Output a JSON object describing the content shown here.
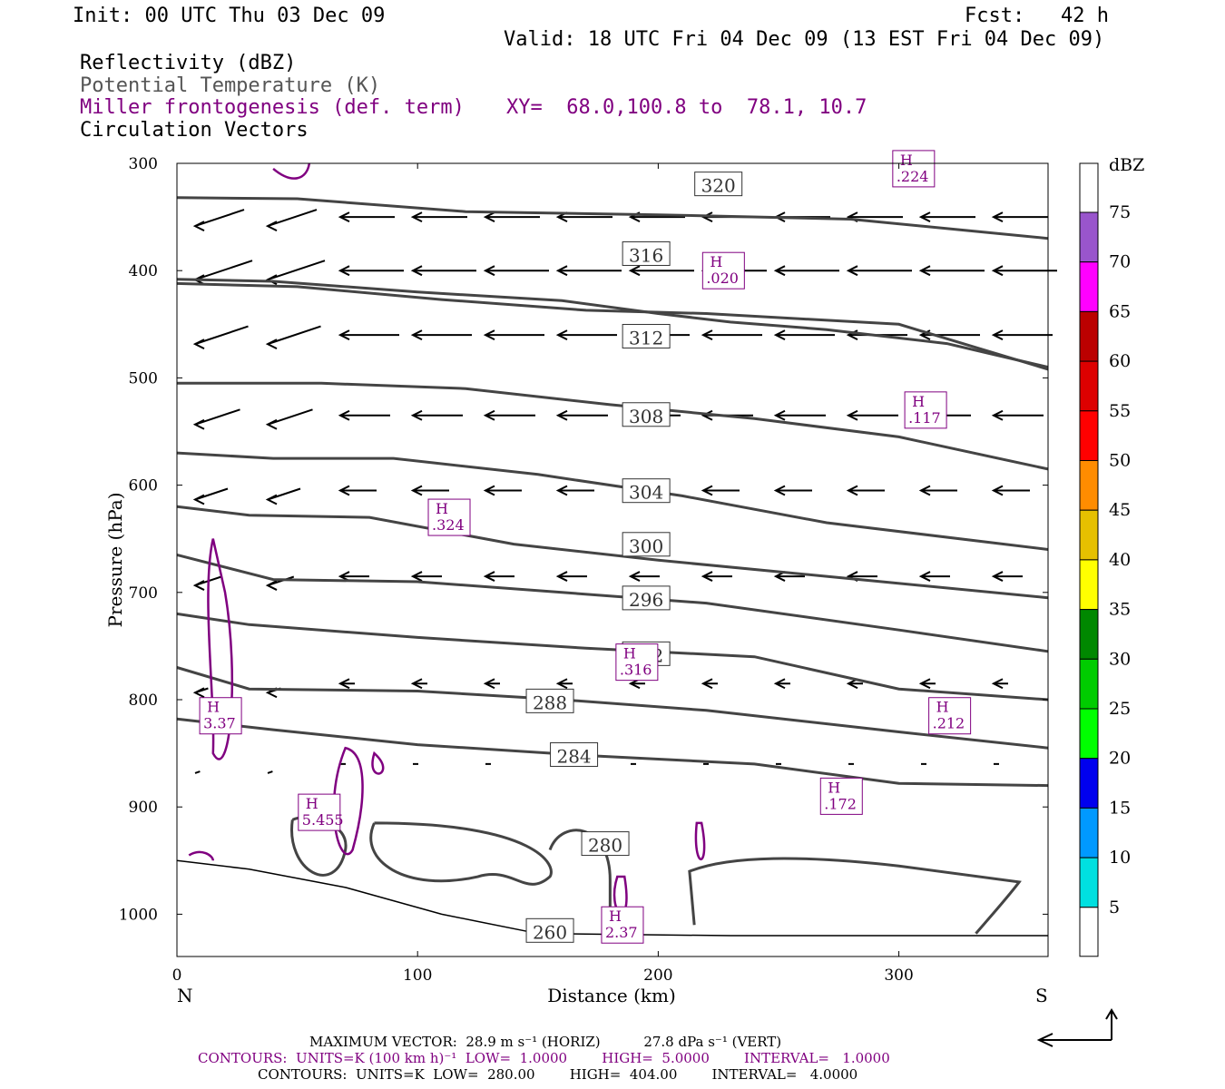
{
  "header": {
    "init": "Init: 00 UTC Thu 03 Dec 09",
    "fcst": "Fcst:   42 h",
    "valid": "Valid: 18 UTC Fri 04 Dec 09 (13 EST Fri 04 Dec 09)",
    "field1": "Reflectivity (dBZ)",
    "field2": "Potential Temperature (K)",
    "field3": "Miller frontogenesis (def. term)",
    "xy": "XY=  68.0,100.8 to  78.1, 10.7",
    "field4": "Circulation Vectors"
  },
  "chart_data": {
    "type": "cross-section",
    "xlabel": "Distance (km)",
    "ylabel": "Pressure (hPa)",
    "xlim": [
      0,
      362
    ],
    "ylim": [
      1040,
      300
    ],
    "x_ticks": [
      "0",
      "100",
      "200",
      "300"
    ],
    "y_ticks": [
      "300",
      "400",
      "500",
      "600",
      "700",
      "800",
      "900",
      "1000"
    ],
    "left_end_label": "N",
    "right_end_label": "S",
    "theta_contours": [
      {
        "level": "320",
        "points": [
          [
            0,
            332
          ],
          [
            50,
            333
          ],
          [
            120,
            345
          ],
          [
            200,
            348
          ],
          [
            280,
            352
          ],
          [
            362,
            370
          ]
        ]
      },
      {
        "level": "316",
        "points": [
          [
            0,
            408
          ],
          [
            40,
            410
          ],
          [
            100,
            420
          ],
          [
            160,
            428
          ],
          [
            200,
            440
          ],
          [
            230,
            448
          ],
          [
            270,
            455
          ],
          [
            320,
            468
          ],
          [
            362,
            490
          ]
        ]
      },
      {
        "level": "312",
        "points": [
          [
            0,
            412
          ],
          [
            50,
            415
          ],
          [
            110,
            427
          ],
          [
            170,
            437
          ],
          [
            220,
            440
          ],
          [
            300,
            450
          ],
          [
            362,
            492
          ]
        ]
      },
      {
        "level": "308",
        "points": [
          [
            0,
            505
          ],
          [
            60,
            505
          ],
          [
            120,
            510
          ],
          [
            180,
            525
          ],
          [
            240,
            538
          ],
          [
            300,
            555
          ],
          [
            362,
            585
          ]
        ]
      },
      {
        "level": "304",
        "points": [
          [
            0,
            570
          ],
          [
            40,
            575
          ],
          [
            90,
            575
          ],
          [
            150,
            590
          ],
          [
            210,
            610
          ],
          [
            270,
            635
          ],
          [
            362,
            660
          ]
        ]
      },
      {
        "level": "300",
        "points": [
          [
            0,
            620
          ],
          [
            30,
            628
          ],
          [
            80,
            630
          ],
          [
            140,
            655
          ],
          [
            200,
            670
          ],
          [
            270,
            685
          ],
          [
            362,
            705
          ]
        ]
      },
      {
        "level": "296",
        "points": [
          [
            0,
            665
          ],
          [
            40,
            688
          ],
          [
            100,
            690
          ],
          [
            160,
            700
          ],
          [
            220,
            710
          ],
          [
            300,
            735
          ],
          [
            362,
            755
          ]
        ]
      },
      {
        "level": "292",
        "points": [
          [
            0,
            720
          ],
          [
            30,
            730
          ],
          [
            100,
            742
          ],
          [
            170,
            752
          ],
          [
            240,
            760
          ],
          [
            300,
            790
          ],
          [
            362,
            800
          ]
        ]
      },
      {
        "level": "288",
        "points": [
          [
            0,
            770
          ],
          [
            30,
            790
          ],
          [
            100,
            792
          ],
          [
            160,
            800
          ],
          [
            220,
            810
          ],
          [
            300,
            830
          ],
          [
            362,
            845
          ]
        ]
      },
      {
        "level": "284",
        "points": [
          [
            0,
            818
          ],
          [
            40,
            828
          ],
          [
            100,
            842
          ],
          [
            170,
            852
          ],
          [
            240,
            860
          ],
          [
            300,
            878
          ],
          [
            362,
            880
          ]
        ]
      }
    ],
    "isentrope_labels": [
      "320",
      "316",
      "312",
      "308",
      "304",
      "300",
      "296",
      "292",
      "288",
      "284",
      "280",
      "260"
    ],
    "frontogenesis_maxima": [
      {
        "label": "H",
        "value": ".224"
      },
      {
        "label": "H",
        "value": ".020"
      },
      {
        "label": "H",
        "value": ".117"
      },
      {
        "label": "H",
        "value": ".324"
      },
      {
        "label": "H",
        "value": ".316"
      },
      {
        "label": "H",
        "value": "3.37"
      },
      {
        "label": "H",
        "value": ".212"
      },
      {
        "label": "H",
        "value": ".172"
      },
      {
        "label": "H",
        "value": "5.455"
      },
      {
        "label": "H",
        "value": "2.37"
      }
    ],
    "colorbar": {
      "title": "dBZ",
      "levels": [
        "5",
        "10",
        "15",
        "20",
        "25",
        "30",
        "35",
        "40",
        "45",
        "50",
        "55",
        "60",
        "65",
        "70",
        "75"
      ],
      "colors": [
        "#00e0e0",
        "#0099ff",
        "#0000ee",
        "#00ff00",
        "#00cc00",
        "#008800",
        "#ffff00",
        "#e6c000",
        "#ff8c00",
        "#ff0000",
        "#dd0000",
        "#bb0000",
        "#ff00ff",
        "#9955cc",
        "#ffffff"
      ]
    }
  },
  "footer": {
    "max_vector": "MAXIMUM VECTOR:  28.9 m s⁻¹ (HORIZ)          27.8 dPa s⁻¹ (VERT)",
    "contours_purple": "CONTOURS:  UNITS=K (100 km h)⁻¹  LOW=  1.0000        HIGH=  5.0000        INTERVAL=   1.0000",
    "contours_black": "CONTOURS:  UNITS=K  LOW=  280.00        HIGH=  404.00        INTERVAL=   4.0000"
  },
  "colors": {
    "theta": "#444444",
    "frontogenesis": "#800080",
    "vectors": "#000000"
  }
}
